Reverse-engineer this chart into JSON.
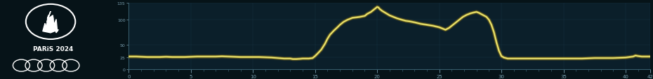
{
  "x_max": 42,
  "y_max": 135,
  "y_ticks": [
    0,
    25,
    50,
    100,
    135
  ],
  "x_ticks": [
    0,
    5,
    10,
    15,
    20,
    25,
    30,
    35,
    40,
    42
  ],
  "bg_dark": "#061318",
  "bg_panel": "#0b1f2a",
  "line_color": "#d4cc40",
  "line_glow_color": "#f5f080",
  "grid_color": "#1a3545",
  "axis_color": "#3a6070",
  "tick_color": "#7aa0b0",
  "left_panel_color": "#05100f",
  "logo_text_color": "#ffffff",
  "elevation_profile": [
    [
      0,
      26
    ],
    [
      0.3,
      26
    ],
    [
      0.6,
      26
    ],
    [
      1,
      25.5
    ],
    [
      1.5,
      25
    ],
    [
      2,
      25
    ],
    [
      2.5,
      25
    ],
    [
      3,
      25.5
    ],
    [
      3.5,
      25
    ],
    [
      4,
      25
    ],
    [
      4.5,
      25
    ],
    [
      5,
      25.5
    ],
    [
      5.5,
      26
    ],
    [
      6,
      26
    ],
    [
      6.5,
      26
    ],
    [
      7,
      26
    ],
    [
      7.5,
      26.5
    ],
    [
      8,
      26
    ],
    [
      8.5,
      25.5
    ],
    [
      9,
      25
    ],
    [
      9.5,
      25
    ],
    [
      10,
      25
    ],
    [
      10.5,
      25
    ],
    [
      11,
      24.5
    ],
    [
      11.5,
      24
    ],
    [
      12,
      23
    ],
    [
      12.5,
      22
    ],
    [
      13,
      22
    ],
    [
      13.2,
      21
    ],
    [
      13.5,
      21
    ],
    [
      13.8,
      21.5
    ],
    [
      14,
      22
    ],
    [
      14.2,
      22
    ],
    [
      14.5,
      22
    ],
    [
      14.8,
      23
    ],
    [
      15,
      27
    ],
    [
      15.2,
      32
    ],
    [
      15.5,
      40
    ],
    [
      15.8,
      52
    ],
    [
      16,
      62
    ],
    [
      16.2,
      70
    ],
    [
      16.5,
      78
    ],
    [
      16.8,
      85
    ],
    [
      17,
      90
    ],
    [
      17.3,
      96
    ],
    [
      17.6,
      100
    ],
    [
      18,
      104
    ],
    [
      18.3,
      105
    ],
    [
      18.6,
      106
    ],
    [
      18.8,
      107
    ],
    [
      19,
      108
    ],
    [
      19.2,
      112
    ],
    [
      19.5,
      116
    ],
    [
      19.7,
      120
    ],
    [
      19.9,
      124
    ],
    [
      20.0,
      126
    ],
    [
      20.1,
      125
    ],
    [
      20.2,
      122
    ],
    [
      20.4,
      118
    ],
    [
      20.6,
      115
    ],
    [
      20.8,
      112
    ],
    [
      21,
      109
    ],
    [
      21.3,
      106
    ],
    [
      21.6,
      103
    ],
    [
      22,
      100
    ],
    [
      22.3,
      98
    ],
    [
      22.6,
      97
    ],
    [
      23,
      95
    ],
    [
      23.5,
      92
    ],
    [
      24,
      90
    ],
    [
      24.5,
      88
    ],
    [
      25,
      85
    ],
    [
      25.3,
      82
    ],
    [
      25.5,
      80
    ],
    [
      25.8,
      84
    ],
    [
      26,
      88
    ],
    [
      26.3,
      94
    ],
    [
      26.6,
      100
    ],
    [
      26.9,
      106
    ],
    [
      27.2,
      110
    ],
    [
      27.5,
      113
    ],
    [
      27.8,
      115
    ],
    [
      28.0,
      116
    ],
    [
      28.2,
      114
    ],
    [
      28.5,
      110
    ],
    [
      28.8,
      106
    ],
    [
      29,
      100
    ],
    [
      29.2,
      90
    ],
    [
      29.4,
      75
    ],
    [
      29.6,
      55
    ],
    [
      29.8,
      38
    ],
    [
      30.0,
      27
    ],
    [
      30.2,
      24
    ],
    [
      30.5,
      22
    ],
    [
      31,
      22
    ],
    [
      31.5,
      22
    ],
    [
      32,
      22
    ],
    [
      32.5,
      22
    ],
    [
      33,
      22
    ],
    [
      33.5,
      22
    ],
    [
      34,
      22
    ],
    [
      34.5,
      22
    ],
    [
      35,
      22
    ],
    [
      35.5,
      22
    ],
    [
      36,
      22
    ],
    [
      36.5,
      22
    ],
    [
      37,
      22.5
    ],
    [
      37.5,
      23
    ],
    [
      38,
      23
    ],
    [
      38.5,
      23
    ],
    [
      39,
      23
    ],
    [
      39.5,
      23.5
    ],
    [
      40,
      24
    ],
    [
      40.3,
      25
    ],
    [
      40.6,
      26
    ],
    [
      40.8,
      28
    ],
    [
      41,
      27
    ],
    [
      41.3,
      26
    ],
    [
      41.6,
      26
    ],
    [
      42,
      26
    ]
  ]
}
